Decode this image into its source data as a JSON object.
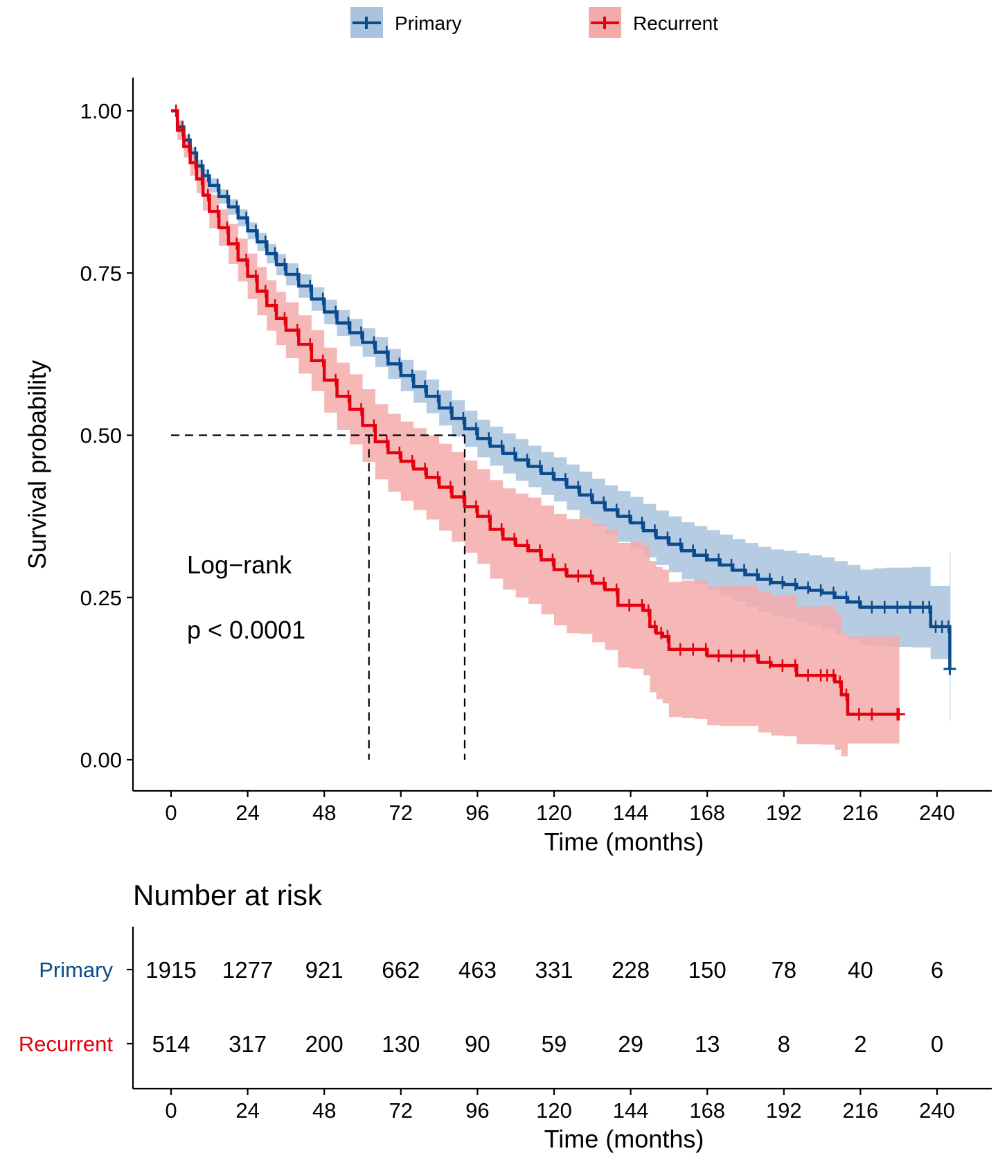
{
  "chart_data": [
    {
      "type": "line",
      "subtype": "kaplan-meier",
      "legend": [
        {
          "name": "Primary",
          "color": "#0A4A8E",
          "band_color": "#A9C3DE"
        },
        {
          "name": "Recurrent",
          "color": "#E3000F",
          "band_color": "#F5AAAA"
        }
      ],
      "legend_position": "top",
      "xlabel": "Time (months)",
      "ylabel": "Survival probability",
      "xlim": [
        -12,
        264
      ],
      "ylim": [
        -0.05,
        1.05
      ],
      "xticks": [
        0,
        24,
        48,
        72,
        96,
        120,
        144,
        168,
        192,
        216,
        240
      ],
      "yticks": [
        0.0,
        0.25,
        0.5,
        0.75,
        1.0
      ],
      "ytick_labels": [
        "0.00",
        "0.25",
        "0.50",
        "0.75",
        "1.00"
      ],
      "annotation": {
        "line1": "Log−rank",
        "line2": "p < 0.0001"
      },
      "median_lines": {
        "y": 0.5,
        "medians": [
          62,
          92
        ]
      },
      "series": [
        {
          "name": "Primary",
          "x": [
            0,
            2,
            4,
            6,
            8,
            10,
            12,
            15,
            18,
            21,
            24,
            27,
            30,
            33,
            36,
            40,
            44,
            48,
            52,
            56,
            60,
            64,
            68,
            72,
            76,
            80,
            84,
            88,
            92,
            96,
            100,
            104,
            108,
            112,
            116,
            120,
            124,
            128,
            132,
            136,
            140,
            144,
            148,
            152,
            156,
            160,
            164,
            168,
            172,
            176,
            180,
            184,
            188,
            192,
            196,
            200,
            204,
            208,
            212,
            216,
            220,
            224,
            228,
            232,
            236,
            238,
            240,
            242,
            244
          ],
          "y": [
            1.0,
            0.975,
            0.955,
            0.935,
            0.915,
            0.9,
            0.885,
            0.868,
            0.852,
            0.835,
            0.815,
            0.798,
            0.78,
            0.763,
            0.748,
            0.73,
            0.71,
            0.69,
            0.673,
            0.658,
            0.643,
            0.628,
            0.61,
            0.592,
            0.575,
            0.56,
            0.542,
            0.526,
            0.51,
            0.495,
            0.483,
            0.472,
            0.462,
            0.452,
            0.441,
            0.432,
            0.42,
            0.408,
            0.396,
            0.385,
            0.375,
            0.365,
            0.353,
            0.342,
            0.332,
            0.322,
            0.315,
            0.308,
            0.3,
            0.292,
            0.285,
            0.278,
            0.273,
            0.27,
            0.265,
            0.261,
            0.257,
            0.25,
            0.243,
            0.235,
            0.235,
            0.235,
            0.235,
            0.235,
            0.235,
            0.205,
            0.205,
            0.205,
            0.14
          ],
          "lower": [
            1.0,
            0.968,
            0.947,
            0.926,
            0.906,
            0.89,
            0.874,
            0.857,
            0.84,
            0.822,
            0.802,
            0.784,
            0.765,
            0.747,
            0.731,
            0.712,
            0.692,
            0.671,
            0.653,
            0.637,
            0.621,
            0.605,
            0.587,
            0.568,
            0.55,
            0.534,
            0.515,
            0.498,
            0.482,
            0.466,
            0.453,
            0.441,
            0.43,
            0.42,
            0.408,
            0.398,
            0.385,
            0.372,
            0.359,
            0.347,
            0.336,
            0.325,
            0.312,
            0.3,
            0.289,
            0.278,
            0.27,
            0.262,
            0.253,
            0.244,
            0.236,
            0.228,
            0.222,
            0.218,
            0.212,
            0.207,
            0.202,
            0.194,
            0.186,
            0.177,
            0.175,
            0.174,
            0.174,
            0.173,
            0.173,
            0.155,
            0.155,
            0.155,
            0.06
          ],
          "upper": [
            1.0,
            0.982,
            0.963,
            0.944,
            0.924,
            0.91,
            0.896,
            0.879,
            0.864,
            0.848,
            0.828,
            0.812,
            0.795,
            0.779,
            0.765,
            0.748,
            0.728,
            0.709,
            0.693,
            0.679,
            0.665,
            0.651,
            0.633,
            0.616,
            0.6,
            0.586,
            0.569,
            0.554,
            0.538,
            0.524,
            0.513,
            0.503,
            0.494,
            0.484,
            0.474,
            0.466,
            0.455,
            0.444,
            0.433,
            0.423,
            0.414,
            0.405,
            0.394,
            0.384,
            0.375,
            0.366,
            0.36,
            0.354,
            0.347,
            0.34,
            0.334,
            0.328,
            0.324,
            0.322,
            0.318,
            0.315,
            0.312,
            0.306,
            0.3,
            0.293,
            0.295,
            0.296,
            0.296,
            0.297,
            0.297,
            0.268,
            0.268,
            0.268,
            0.32
          ]
        },
        {
          "name": "Recurrent",
          "x": [
            0,
            2,
            4,
            6,
            8,
            10,
            12,
            15,
            18,
            21,
            24,
            27,
            30,
            33,
            36,
            40,
            44,
            48,
            52,
            56,
            60,
            64,
            68,
            72,
            76,
            80,
            84,
            88,
            92,
            96,
            100,
            104,
            108,
            112,
            116,
            120,
            124,
            128,
            132,
            136,
            140,
            144,
            148,
            150,
            152,
            154,
            156,
            160,
            164,
            168,
            172,
            176,
            180,
            184,
            188,
            192,
            196,
            200,
            204,
            206,
            208,
            210,
            212,
            216,
            220,
            228
          ],
          "y": [
            1.0,
            0.97,
            0.945,
            0.92,
            0.895,
            0.87,
            0.845,
            0.82,
            0.795,
            0.77,
            0.745,
            0.722,
            0.7,
            0.68,
            0.662,
            0.64,
            0.615,
            0.585,
            0.56,
            0.54,
            0.515,
            0.49,
            0.473,
            0.46,
            0.448,
            0.435,
            0.42,
            0.405,
            0.39,
            0.375,
            0.355,
            0.34,
            0.33,
            0.322,
            0.308,
            0.293,
            0.283,
            0.283,
            0.272,
            0.262,
            0.238,
            0.238,
            0.23,
            0.205,
            0.195,
            0.19,
            0.17,
            0.17,
            0.17,
            0.16,
            0.16,
            0.16,
            0.16,
            0.15,
            0.145,
            0.145,
            0.13,
            0.13,
            0.13,
            0.13,
            0.12,
            0.1,
            0.07,
            0.07,
            0.07,
            0.07
          ],
          "lower": [
            1.0,
            0.955,
            0.928,
            0.9,
            0.873,
            0.846,
            0.819,
            0.792,
            0.764,
            0.737,
            0.71,
            0.685,
            0.661,
            0.639,
            0.619,
            0.595,
            0.568,
            0.535,
            0.508,
            0.486,
            0.459,
            0.432,
            0.413,
            0.399,
            0.385,
            0.37,
            0.353,
            0.336,
            0.319,
            0.302,
            0.279,
            0.262,
            0.25,
            0.24,
            0.224,
            0.207,
            0.195,
            0.194,
            0.181,
            0.169,
            0.142,
            0.14,
            0.13,
            0.104,
            0.093,
            0.087,
            0.066,
            0.064,
            0.063,
            0.053,
            0.052,
            0.052,
            0.052,
            0.042,
            0.037,
            0.036,
            0.024,
            0.024,
            0.023,
            0.023,
            0.015,
            0.005,
            0.025,
            0.025,
            0.025,
            0.025
          ],
          "upper": [
            1.0,
            0.985,
            0.962,
            0.94,
            0.917,
            0.894,
            0.871,
            0.848,
            0.826,
            0.803,
            0.78,
            0.759,
            0.739,
            0.721,
            0.705,
            0.685,
            0.662,
            0.635,
            0.612,
            0.594,
            0.571,
            0.548,
            0.533,
            0.521,
            0.511,
            0.5,
            0.487,
            0.474,
            0.461,
            0.448,
            0.431,
            0.418,
            0.41,
            0.404,
            0.392,
            0.379,
            0.371,
            0.372,
            0.363,
            0.355,
            0.334,
            0.336,
            0.33,
            0.306,
            0.297,
            0.293,
            0.274,
            0.276,
            0.277,
            0.267,
            0.268,
            0.268,
            0.268,
            0.258,
            0.253,
            0.254,
            0.236,
            0.236,
            0.237,
            0.237,
            0.225,
            0.195,
            0.19,
            0.19,
            0.19,
            0.19
          ]
        }
      ]
    },
    {
      "type": "table",
      "title": "Number at risk",
      "xlabel": "Time (months)",
      "times": [
        0,
        24,
        48,
        72,
        96,
        120,
        144,
        168,
        192,
        216,
        240
      ],
      "rows": [
        {
          "name": "Primary",
          "color": "#0A4A8E",
          "values": [
            1915,
            1277,
            921,
            662,
            463,
            331,
            228,
            150,
            78,
            40,
            6
          ]
        },
        {
          "name": "Recurrent",
          "color": "#E3000F",
          "values": [
            514,
            317,
            200,
            130,
            90,
            59,
            29,
            13,
            8,
            2,
            0
          ]
        }
      ]
    }
  ]
}
